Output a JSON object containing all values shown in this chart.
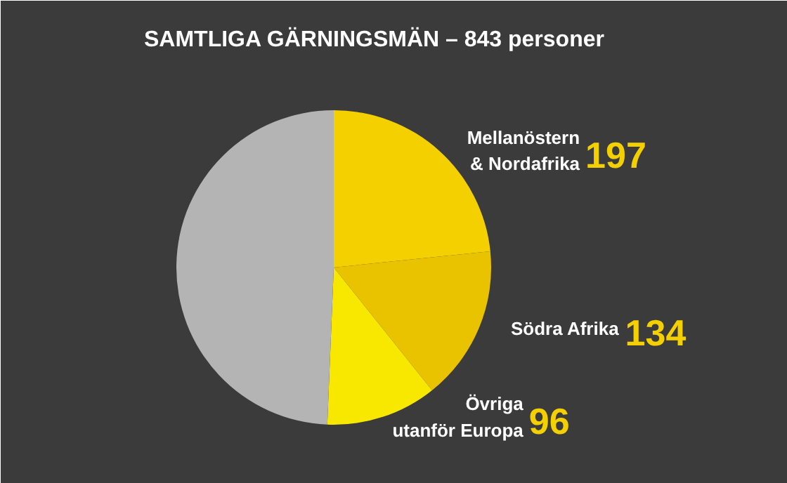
{
  "chart_data": {
    "type": "pie",
    "title": "SAMTLIGA GÄRNINGSMÄN – 843 personer",
    "categories": [
      "Mellanöstern\n& Nordafrika",
      "Södra Afrika",
      "Övriga\nutanför Europa",
      null
    ],
    "values": [
      197,
      134,
      96,
      416
    ],
    "colors": [
      "#f5d000",
      "#e9c200",
      "#f8e800",
      "#b4b4b4"
    ],
    "value_labels": [
      "197",
      "134",
      "96",
      null
    ]
  }
}
